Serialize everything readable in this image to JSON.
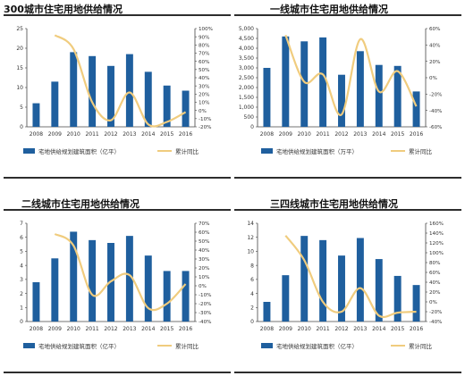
{
  "colors": {
    "bar": "#1f5f9e",
    "line": "#f0cc7e",
    "text": "#333333"
  },
  "chart_data": [
    {
      "type": "bar",
      "title": "300城市住宅用地供给情况",
      "categories": [
        "2008",
        "2009",
        "2010",
        "2011",
        "2012",
        "2013",
        "2014",
        "2015",
        "2016"
      ],
      "left_ticks": [
        "0",
        "5",
        "10",
        "15",
        "20",
        "25"
      ],
      "right_ticks": [
        "-20%",
        "-10%",
        "0%",
        "10%",
        "20%",
        "30%",
        "40%",
        "50%",
        "60%",
        "70%",
        "80%",
        "90%",
        "100%"
      ],
      "ylim_left": [
        0,
        25
      ],
      "ylim_right": [
        -20,
        100
      ],
      "series": [
        {
          "name": "宅地供给规划建筑面积（亿平）",
          "type": "bar",
          "axis": "left",
          "values": [
            6.0,
            11.5,
            19.0,
            18.0,
            15.5,
            18.5,
            14.0,
            10.5,
            9.2
          ]
        },
        {
          "name": "累计同比",
          "type": "line",
          "axis": "right",
          "values": [
            null,
            92,
            75,
            10,
            -12,
            22,
            -17,
            -14,
            -2
          ]
        }
      ],
      "legend": {
        "bar_label": "宅地供给规划建筑面积（亿平）",
        "line_label": "累计同比"
      }
    },
    {
      "type": "bar",
      "title": "一线城市住宅用地供给情况",
      "categories": [
        "2008",
        "2009",
        "2010",
        "2011",
        "2012",
        "2013",
        "2014",
        "2015",
        "2016"
      ],
      "left_ticks": [
        "0",
        "500",
        "1,000",
        "1,500",
        "2,000",
        "2,500",
        "3,000",
        "3,500",
        "4,000",
        "4,500",
        "5,000"
      ],
      "right_ticks": [
        "-60%",
        "-40%",
        "-20%",
        "0%",
        "20%",
        "40%",
        "60%"
      ],
      "ylim_left": [
        0,
        5000
      ],
      "ylim_right": [
        -60,
        60
      ],
      "series": [
        {
          "name": "宅地供给规划建筑面积（万平）",
          "type": "bar",
          "axis": "left",
          "values": [
            3000,
            4600,
            4350,
            4550,
            2650,
            3850,
            3150,
            3100,
            1800
          ]
        },
        {
          "name": "累计同比",
          "type": "line",
          "axis": "right",
          "values": [
            null,
            52,
            -5,
            4,
            -45,
            47,
            -17,
            8,
            -35
          ]
        }
      ],
      "legend": {
        "bar_label": "宅地供给规划建筑面积（万平）",
        "line_label": "累计同比"
      }
    },
    {
      "type": "bar",
      "title": "二线城市住宅用地供给情况",
      "categories": [
        "2008",
        "2009",
        "2010",
        "2011",
        "2012",
        "2013",
        "2014",
        "2015",
        "2016"
      ],
      "left_ticks": [
        "0",
        "1",
        "2",
        "3",
        "4",
        "5",
        "6",
        "7"
      ],
      "right_ticks": [
        "-40%",
        "-30%",
        "-20%",
        "-10%",
        "0%",
        "10%",
        "20%",
        "30%",
        "40%",
        "50%",
        "60%",
        "70%"
      ],
      "ylim_left": [
        0,
        7
      ],
      "ylim_right": [
        -40,
        70
      ],
      "series": [
        {
          "name": "宅地供给规划建筑面积（亿平）",
          "type": "bar",
          "axis": "left",
          "values": [
            2.8,
            4.5,
            6.4,
            5.8,
            5.6,
            6.1,
            4.7,
            3.6,
            3.6
          ]
        },
        {
          "name": "累计同比",
          "type": "line",
          "axis": "right",
          "values": [
            null,
            58,
            45,
            -10,
            5,
            12,
            -25,
            -20,
            2
          ]
        }
      ],
      "legend": {
        "bar_label": "宅地供给规划建筑面积（亿平）",
        "line_label": "累计同比"
      }
    },
    {
      "type": "bar",
      "title": "三四线城市住宅用地供给情况",
      "categories": [
        "2008",
        "2009",
        "2010",
        "2011",
        "2012",
        "2013",
        "2014",
        "2015",
        "2016"
      ],
      "left_ticks": [
        "0",
        "2",
        "4",
        "6",
        "8",
        "10",
        "12",
        "14"
      ],
      "right_ticks": [
        "-40%",
        "-20%",
        "0%",
        "20%",
        "40%",
        "60%",
        "80%",
        "100%",
        "120%",
        "140%",
        "160%"
      ],
      "ylim_left": [
        0,
        14
      ],
      "ylim_right": [
        -40,
        160
      ],
      "series": [
        {
          "name": "宅地供给规划建筑面积（亿平）",
          "type": "bar",
          "axis": "left",
          "values": [
            2.8,
            6.6,
            12.2,
            11.6,
            9.4,
            11.9,
            8.9,
            6.5,
            5.2
          ]
        },
        {
          "name": "累计同比",
          "type": "line",
          "axis": "right",
          "values": [
            null,
            135,
            85,
            0,
            -20,
            28,
            -28,
            -22,
            -20
          ]
        }
      ],
      "legend": {
        "bar_label": "宅地供给规划建筑面积（亿平）",
        "line_label": "累计同比"
      }
    }
  ]
}
